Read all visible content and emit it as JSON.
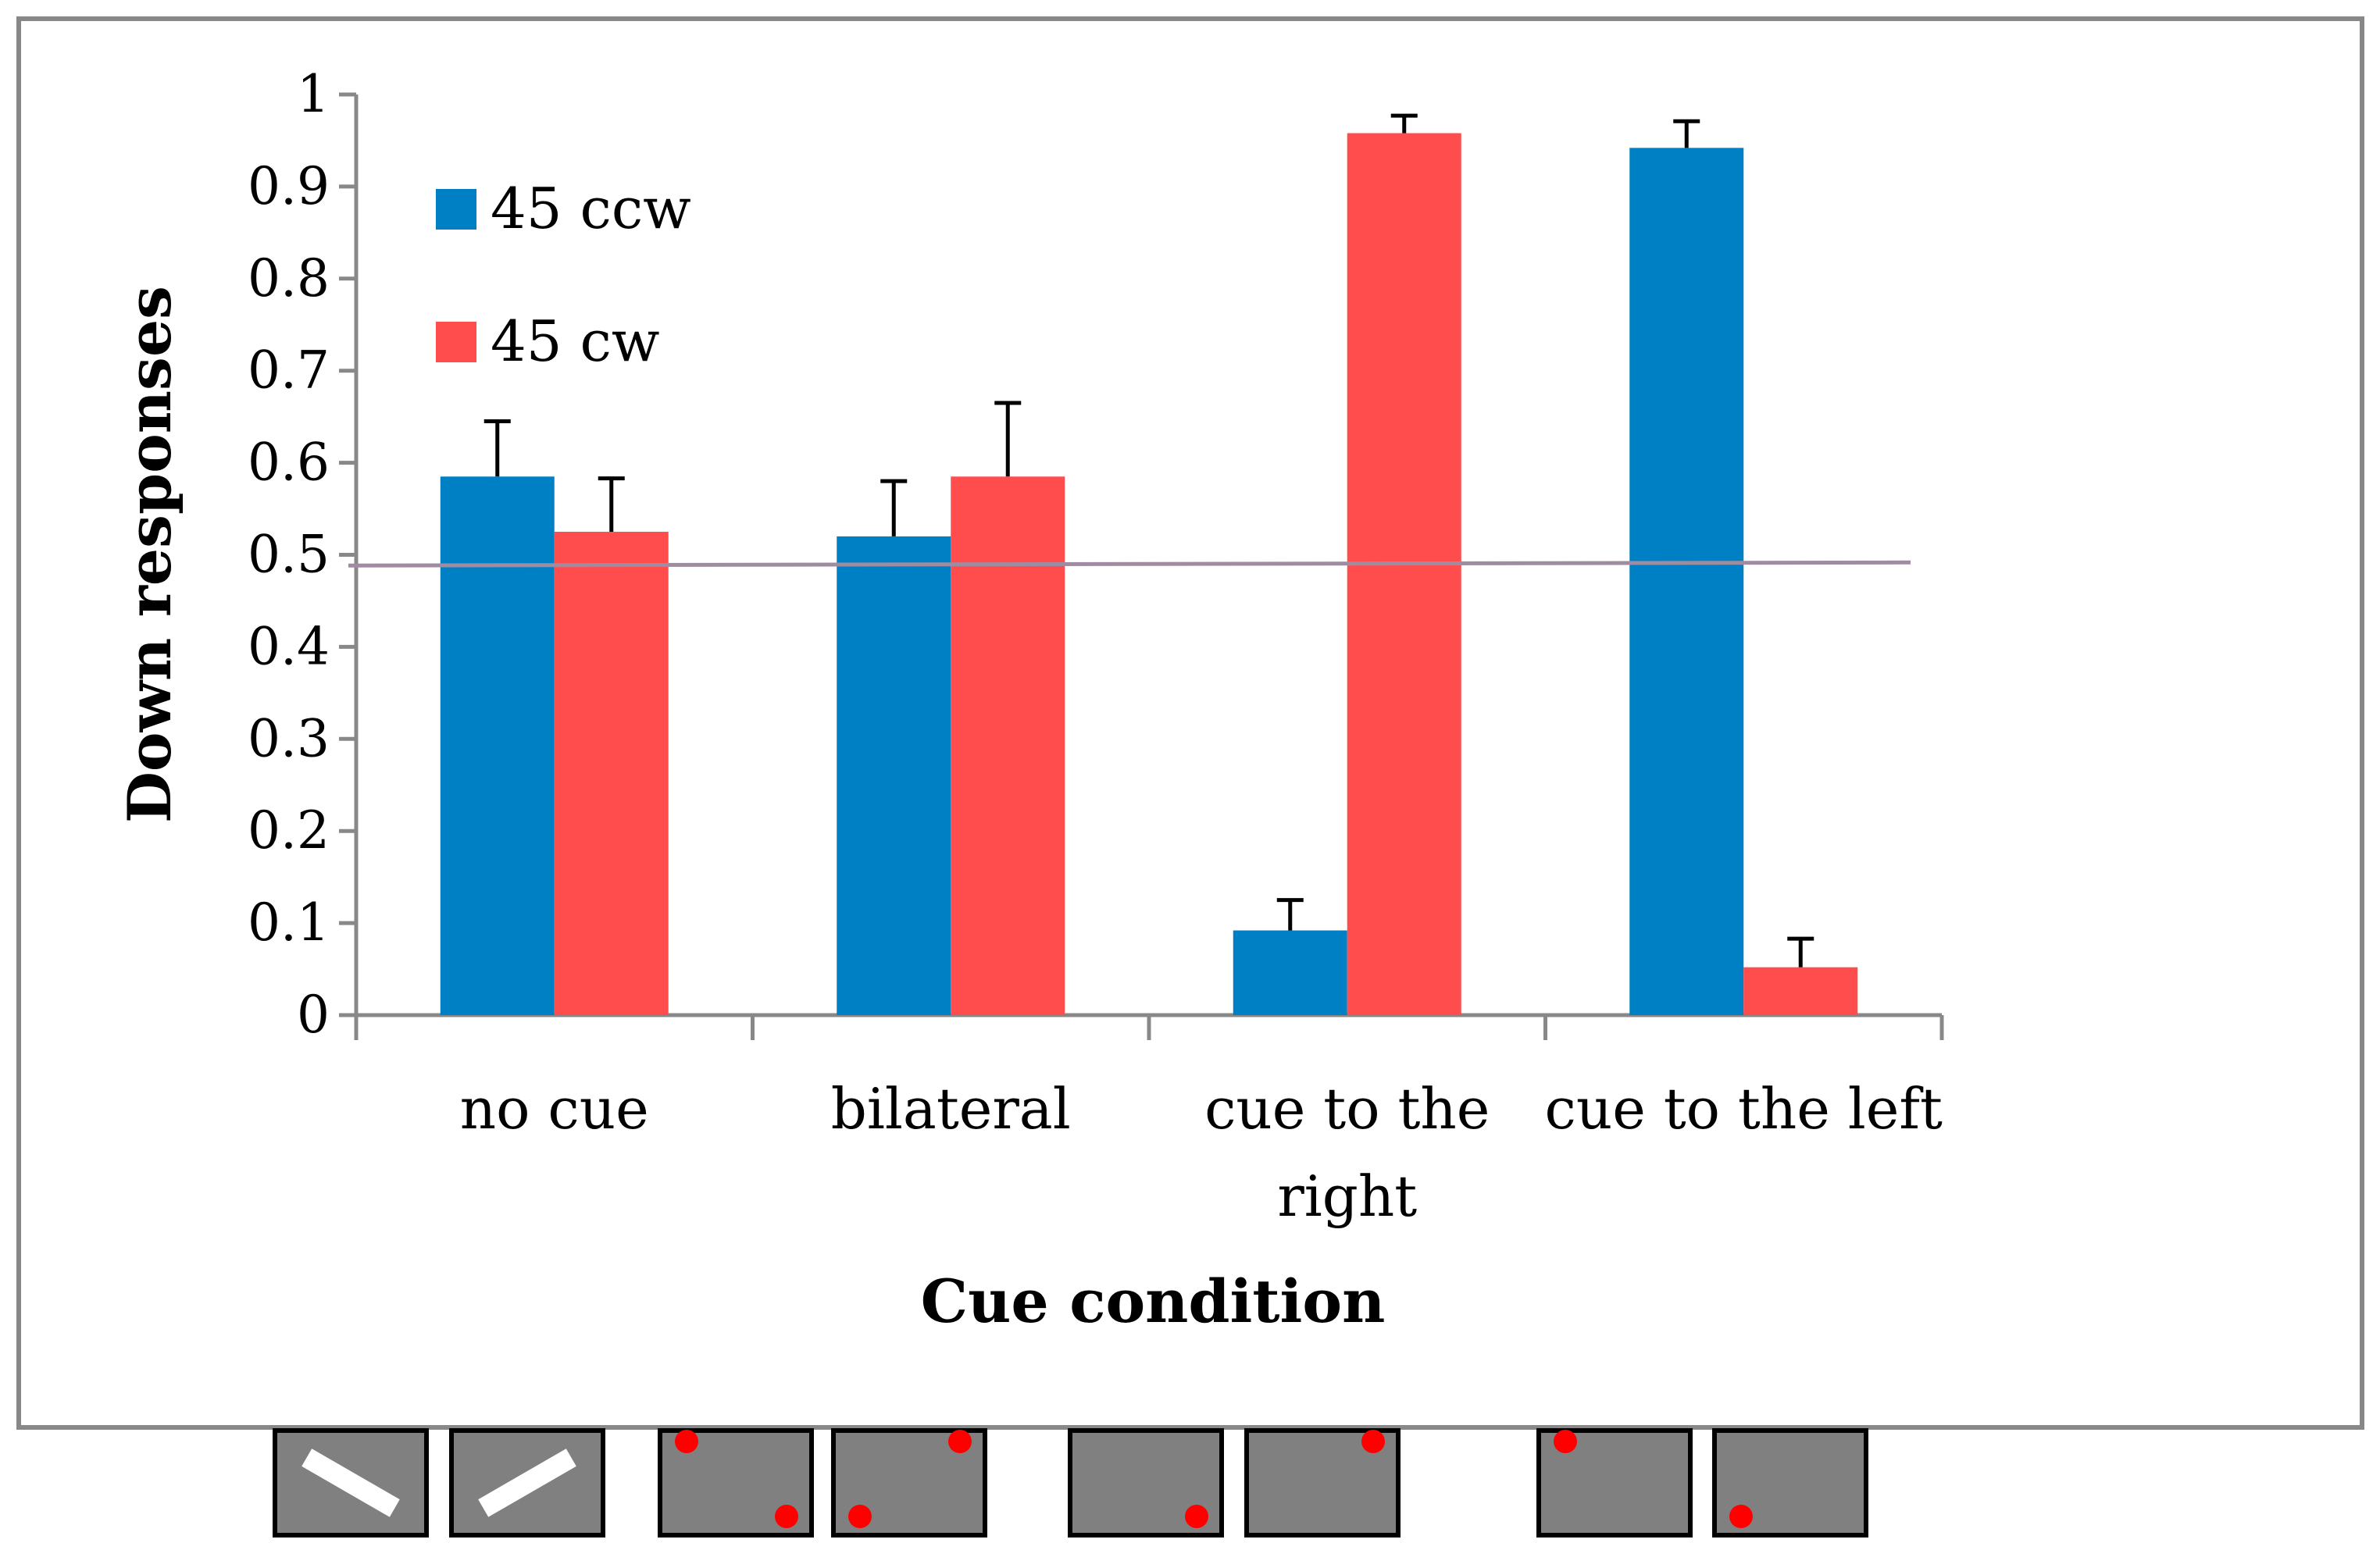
{
  "chart_data": {
    "type": "bar",
    "title": "",
    "xlabel": "Cue condition",
    "ylabel": "Down responses",
    "ylim": [
      0,
      1
    ],
    "yticks": [
      "0",
      "0.1",
      "0.2",
      "0.3",
      "0.4",
      "0.5",
      "0.6",
      "0.7",
      "0.8",
      "0.9",
      "1"
    ],
    "categories": [
      [
        "no cue"
      ],
      [
        "bilateral"
      ],
      [
        "cue to the",
        "right"
      ],
      [
        "cue to the left"
      ]
    ],
    "series": [
      {
        "name": "45 ccw",
        "color": "#0080C4",
        "values": [
          0.585,
          0.52,
          0.092,
          0.942
        ],
        "errors": [
          0.06,
          0.06,
          0.033,
          0.029
        ]
      },
      {
        "name": "45 cw",
        "color": "#FF4D4D",
        "values": [
          0.525,
          0.585,
          0.958,
          0.052
        ],
        "errors": [
          0.058,
          0.08,
          0.019,
          0.031
        ]
      }
    ],
    "reference_line": {
      "value": 0.49,
      "color": "#A08CA0"
    },
    "legend": "top-left",
    "grid": false
  },
  "stimuli": {
    "panel_color": "#808080",
    "dot_color": "#FF0000",
    "bar_color": "#FFFFFF",
    "groups": [
      {
        "name": "no cue",
        "panels": [
          {
            "type": "bar",
            "orientation": "ccw"
          },
          {
            "type": "bar",
            "orientation": "cw"
          }
        ]
      },
      {
        "name": "bilateral",
        "panels": [
          {
            "type": "dots",
            "dots": [
              "top-left",
              "bottom-right"
            ]
          },
          {
            "type": "dots",
            "dots": [
              "top-right",
              "bottom-left"
            ]
          }
        ]
      },
      {
        "name": "cue to the right",
        "panels": [
          {
            "type": "dots",
            "dots": [
              "bottom-right"
            ]
          },
          {
            "type": "dots",
            "dots": [
              "top-right"
            ]
          }
        ]
      },
      {
        "name": "cue to the left",
        "panels": [
          {
            "type": "dots",
            "dots": [
              "top-left"
            ]
          },
          {
            "type": "dots",
            "dots": [
              "bottom-left"
            ]
          }
        ]
      }
    ]
  }
}
